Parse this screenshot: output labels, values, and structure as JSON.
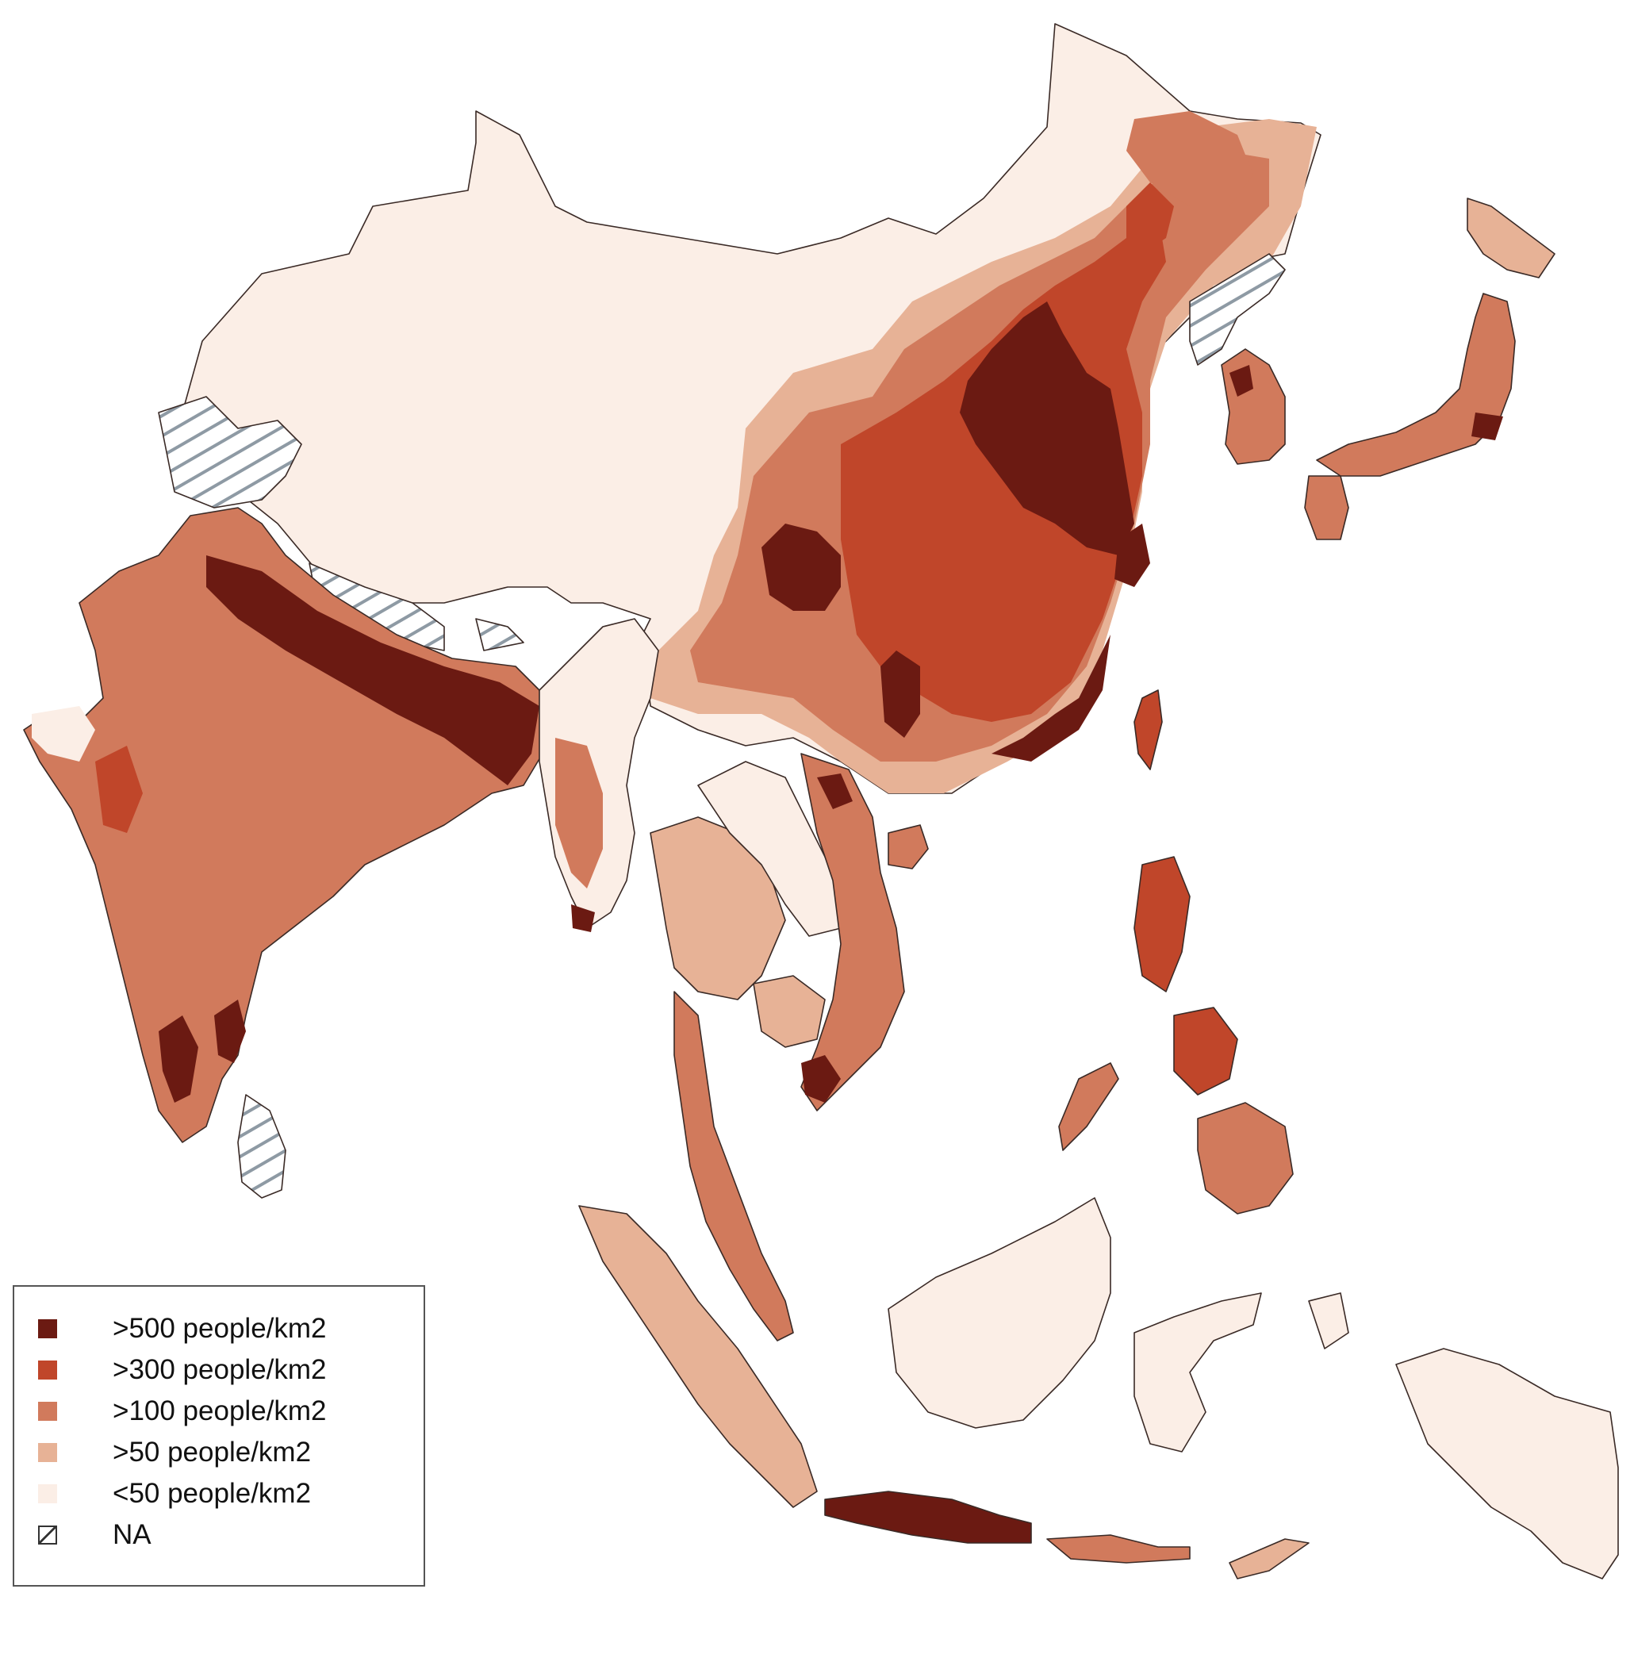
{
  "map": {
    "colors": {
      "gt500": "#6b1a12",
      "gt300": "#c0462a",
      "gt100": "#d17a5c",
      "gt50": "#e7b296",
      "lt50": "#fbeee6",
      "na": "#ffffff",
      "hatch": "#8e9aa4",
      "border": "#2b2020"
    }
  },
  "legend": {
    "items": [
      {
        "label": ">500 people/km2",
        "class": "gt500",
        "color": "#6b1a12"
      },
      {
        "label": ">300 people/km2",
        "class": "gt300",
        "color": "#c0462a"
      },
      {
        "label": ">100 people/km2",
        "class": "gt100",
        "color": "#d17a5c"
      },
      {
        "label": ">50 people/km2",
        "class": "gt50",
        "color": "#e7b296"
      },
      {
        "label": "<50 people/km2",
        "class": "lt50",
        "color": "#fbeee6"
      },
      {
        "label": "NA",
        "class": "na",
        "color": "#ffffff"
      }
    ]
  }
}
